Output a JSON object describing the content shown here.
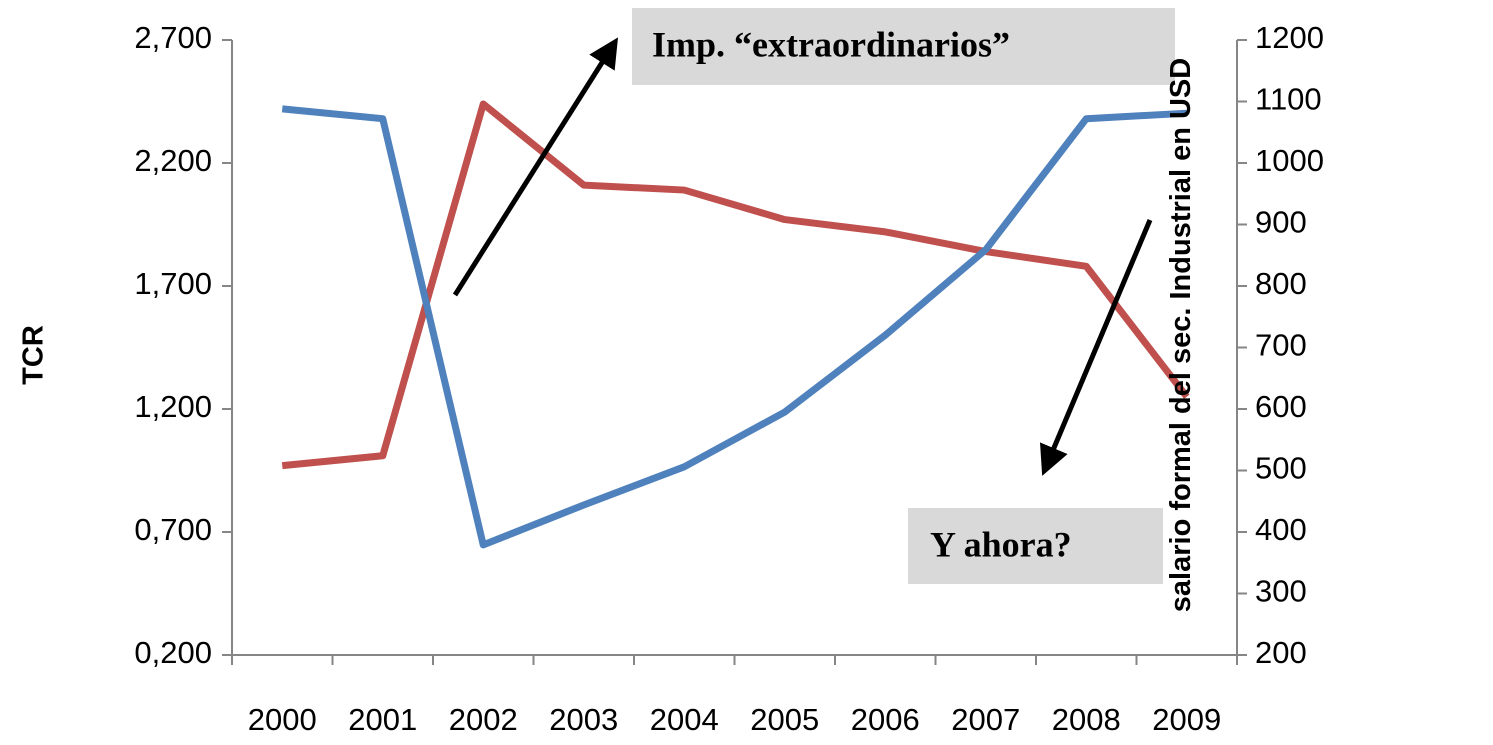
{
  "chart_data": {
    "type": "line",
    "ylabel": "TCR",
    "y2label": "salario formal del sec. Industrial en USD",
    "annotations": [
      "Imp. “extraordinarios”",
      "Y ahora?"
    ],
    "categories": [
      "2000",
      "2001",
      "2002",
      "2003",
      "2004",
      "2005",
      "2006",
      "2007",
      "2008",
      "2009"
    ],
    "series": [
      {
        "name": "TCR",
        "color": "#c0504d",
        "axis": "y",
        "values": [
          0.97,
          1.01,
          2.44,
          2.11,
          2.09,
          1.97,
          1.92,
          1.84,
          1.78,
          1.25
        ]
      },
      {
        "name": "salario formal del sec. Industrial en USD",
        "color": "#4f81bd",
        "axis": "y2",
        "values": [
          1088,
          1072,
          379,
          444,
          506,
          595,
          720,
          859,
          1072,
          1081
        ]
      }
    ],
    "ylim": [
      0.2,
      2.7
    ],
    "yticks": [
      {
        "value": 0.2,
        "label": "0,200"
      },
      {
        "value": 0.7,
        "label": "0,700"
      },
      {
        "value": 1.2,
        "label": "1,200"
      },
      {
        "value": 1.7,
        "label": "1,700"
      },
      {
        "value": 2.2,
        "label": "2,200"
      },
      {
        "value": 2.7,
        "label": "2,700"
      }
    ],
    "y2lim": [
      200,
      1200
    ],
    "y2ticks": [
      200,
      300,
      400,
      500,
      600,
      700,
      800,
      900,
      1000,
      1100,
      1200
    ],
    "grid": false,
    "legend": false
  }
}
